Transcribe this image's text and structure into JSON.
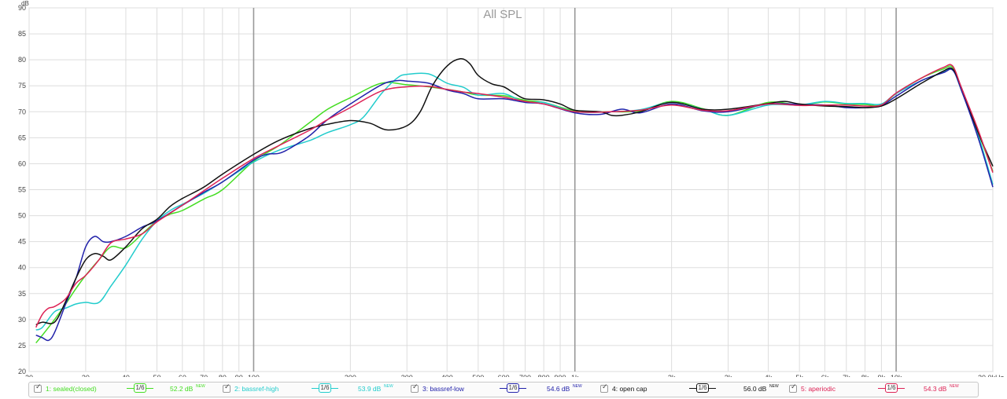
{
  "chart_data": {
    "type": "line",
    "title": "All SPL",
    "ylabel": "dB",
    "xlabel": "",
    "xscale": "log",
    "xlim": [
      20,
      20000
    ],
    "ylim": [
      20,
      90
    ],
    "grid": true,
    "yticks": [
      20,
      25,
      30,
      35,
      40,
      45,
      50,
      55,
      60,
      65,
      70,
      75,
      80,
      85,
      90
    ],
    "xticks": [
      {
        "v": 20,
        "label": "20"
      },
      {
        "v": 30,
        "label": "30"
      },
      {
        "v": 40,
        "label": "40"
      },
      {
        "v": 50,
        "label": "50"
      },
      {
        "v": 60,
        "label": "60"
      },
      {
        "v": 70,
        "label": "70"
      },
      {
        "v": 80,
        "label": "80"
      },
      {
        "v": 90,
        "label": "90"
      },
      {
        "v": 100,
        "label": "100"
      },
      {
        "v": 200,
        "label": "200"
      },
      {
        "v": 300,
        "label": "300"
      },
      {
        "v": 400,
        "label": "400"
      },
      {
        "v": 500,
        "label": "500"
      },
      {
        "v": 600,
        "label": "600"
      },
      {
        "v": 700,
        "label": "700"
      },
      {
        "v": 800,
        "label": "800"
      },
      {
        "v": 900,
        "label": "900"
      },
      {
        "v": 1000,
        "label": "1k"
      },
      {
        "v": 2000,
        "label": "2k"
      },
      {
        "v": 3000,
        "label": "3k"
      },
      {
        "v": 4000,
        "label": "4k"
      },
      {
        "v": 5000,
        "label": "5k"
      },
      {
        "v": 6000,
        "label": "6k"
      },
      {
        "v": 7000,
        "label": "7k"
      },
      {
        "v": 8000,
        "label": "8k"
      },
      {
        "v": 9000,
        "label": "9k"
      },
      {
        "v": 10000,
        "label": "10k"
      },
      {
        "v": 20000,
        "label": "20.0kHz"
      }
    ],
    "major_x": [
      100,
      1000,
      10000
    ],
    "series": [
      {
        "name": "1: sealed(closed)",
        "color": "#44dd22",
        "x": [
          21,
          22,
          24,
          26,
          28,
          30,
          33,
          36,
          40,
          45,
          50,
          55,
          60,
          70,
          80,
          100,
          120,
          150,
          170,
          200,
          250,
          300,
          350,
          400,
          450,
          500,
          600,
          700,
          800,
          1000,
          1300,
          1600,
          2000,
          2500,
          3000,
          4000,
          5000,
          6000,
          7000,
          8000,
          9000,
          10000,
          12000,
          14000,
          15000,
          16000,
          18000,
          20000
        ],
        "y": [
          25.5,
          27,
          30,
          33,
          36,
          38.5,
          41.5,
          44,
          43.8,
          46.5,
          49,
          50.3,
          51,
          53.2,
          55,
          60.5,
          63.5,
          68,
          70.5,
          72.7,
          75.5,
          75.2,
          74.8,
          74.3,
          73.8,
          73.2,
          73.1,
          72.2,
          71.8,
          70.2,
          70,
          70.2,
          72,
          70.6,
          69.3,
          71.8,
          71.3,
          71.9,
          71.5,
          71.4,
          71.3,
          73.5,
          76.5,
          78.2,
          78.5,
          74,
          66,
          58.5
        ]
      },
      {
        "name": "2: bassref-high",
        "color": "#22cccc",
        "x": [
          21,
          22,
          24,
          26,
          28,
          30,
          33,
          36,
          40,
          45,
          50,
          55,
          60,
          70,
          80,
          100,
          120,
          150,
          170,
          200,
          220,
          250,
          280,
          300,
          350,
          400,
          450,
          500,
          600,
          700,
          800,
          1000,
          1300,
          1600,
          2000,
          2500,
          3000,
          4000,
          5000,
          6000,
          7000,
          8000,
          9000,
          10000,
          12000,
          14000,
          15000,
          16000,
          18000,
          20000
        ],
        "y": [
          28,
          28.5,
          31.5,
          32.2,
          33,
          33.3,
          33.3,
          36.5,
          40.5,
          45.5,
          49,
          51,
          52.2,
          54.3,
          56.5,
          60.3,
          62.6,
          64.5,
          66,
          67.5,
          69,
          73.5,
          76.5,
          77.2,
          77.3,
          75.5,
          74.7,
          73.2,
          73.5,
          71.8,
          71.8,
          70,
          70,
          70.4,
          71.8,
          70.5,
          69.3,
          71.3,
          71.3,
          72,
          71.6,
          71.6,
          71.5,
          73.5,
          76,
          77.6,
          78.1,
          74,
          65.5,
          56
        ]
      },
      {
        "name": "3: bassref-low",
        "color": "#2222aa",
        "x": [
          21,
          22,
          23,
          24,
          26,
          28,
          30,
          32,
          34,
          36,
          40,
          45,
          50,
          60,
          70,
          80,
          100,
          110,
          120,
          130,
          150,
          170,
          200,
          250,
          280,
          300,
          350,
          400,
          450,
          500,
          600,
          700,
          800,
          1000,
          1200,
          1400,
          1600,
          2000,
          2500,
          3000,
          4000,
          5000,
          6000,
          7000,
          8000,
          9000,
          10000,
          12000,
          14000,
          15000,
          16000,
          18000,
          20000
        ],
        "y": [
          27,
          26.5,
          26,
          27.5,
          33,
          38,
          44,
          46,
          45,
          45,
          46,
          47.8,
          49,
          52,
          54.5,
          56.5,
          60.7,
          61.8,
          62,
          63,
          65.5,
          68.5,
          71.5,
          75.2,
          76,
          75.9,
          75.5,
          74.2,
          73.5,
          72.5,
          72.5,
          71.8,
          71.5,
          69.8,
          69.5,
          70.5,
          69.8,
          71.5,
          70.2,
          70,
          71.5,
          71.4,
          71.3,
          70.8,
          70.8,
          71.2,
          73,
          76,
          77.5,
          78,
          74,
          65,
          55.5
        ]
      },
      {
        "name": "4: open cap",
        "color": "#111111",
        "x": [
          21,
          22,
          24,
          26,
          28,
          30,
          32,
          34,
          36,
          40,
          45,
          50,
          55,
          60,
          70,
          80,
          100,
          120,
          150,
          170,
          200,
          230,
          260,
          300,
          330,
          360,
          400,
          440,
          470,
          500,
          550,
          600,
          650,
          700,
          800,
          900,
          1000,
          1200,
          1300,
          1400,
          1600,
          2000,
          2500,
          3000,
          4000,
          4500,
          5000,
          6000,
          7000,
          8000,
          9000,
          10000,
          12000,
          14000,
          15000,
          16000,
          18000,
          20000
        ],
        "y": [
          29,
          29.5,
          29.5,
          33.5,
          38,
          41.5,
          42.7,
          42.2,
          41.5,
          44,
          47.5,
          49.3,
          51.8,
          53.3,
          55.5,
          58,
          61.8,
          64.5,
          66.8,
          67.6,
          68.3,
          67.8,
          66.5,
          67.3,
          70,
          75,
          78.8,
          80.2,
          79.3,
          77,
          75.4,
          74.8,
          73.5,
          72.5,
          72.3,
          71.5,
          70.3,
          70,
          69.3,
          69.3,
          70,
          71.8,
          70.5,
          70.5,
          71.6,
          72,
          71.5,
          71.1,
          71,
          70.8,
          71.1,
          72.5,
          75.5,
          77.8,
          78.2,
          74.5,
          66,
          59.5
        ]
      },
      {
        "name": "5: aperiodic",
        "color": "#dd2255",
        "x": [
          21,
          22,
          23,
          24,
          26,
          28,
          30,
          33,
          36,
          40,
          45,
          50,
          60,
          70,
          80,
          100,
          120,
          150,
          170,
          200,
          250,
          300,
          350,
          400,
          450,
          500,
          600,
          700,
          800,
          1000,
          1300,
          1600,
          2000,
          2500,
          3000,
          4000,
          5000,
          6000,
          7000,
          8000,
          9000,
          10000,
          12000,
          14000,
          15000,
          16000,
          18000,
          20000
        ],
        "y": [
          28.5,
          31,
          32.2,
          32.5,
          34,
          37,
          38.5,
          41.5,
          44.8,
          45.5,
          46.5,
          48.8,
          52,
          54.8,
          57.2,
          61,
          63.5,
          66.5,
          68.5,
          70.8,
          74,
          74.8,
          74.9,
          74.3,
          73.8,
          73.5,
          72.8,
          72,
          71.5,
          70,
          70,
          70.3,
          71.3,
          70.3,
          70.2,
          71.5,
          71.2,
          71.3,
          71.3,
          71.1,
          71.3,
          73.6,
          76.5,
          78.5,
          78.8,
          74.5,
          66.5,
          58.3
        ]
      }
    ]
  },
  "legend": [
    {
      "check": "✓",
      "name": "1: sealed(closed)",
      "smoothing": "1/6",
      "level": "52.2 dB",
      "new": "NEW",
      "color": "#44dd22"
    },
    {
      "check": "✓",
      "name": "2: bassref-high",
      "smoothing": "1/6",
      "level": "53.9 dB",
      "new": "NEW",
      "color": "#22cccc"
    },
    {
      "check": "✓",
      "name": "3: bassref-low",
      "smoothing": "1/6",
      "level": "54.6 dB",
      "new": "NEW",
      "color": "#2222aa"
    },
    {
      "check": "✓",
      "name": "4: open cap",
      "smoothing": "1/6",
      "level": "56.0 dB",
      "new": "NEW",
      "color": "#111111"
    },
    {
      "check": "✓",
      "name": "5: aperiodic",
      "smoothing": "1/6",
      "level": "54.3 dB",
      "new": "NEW",
      "color": "#dd2255"
    }
  ]
}
